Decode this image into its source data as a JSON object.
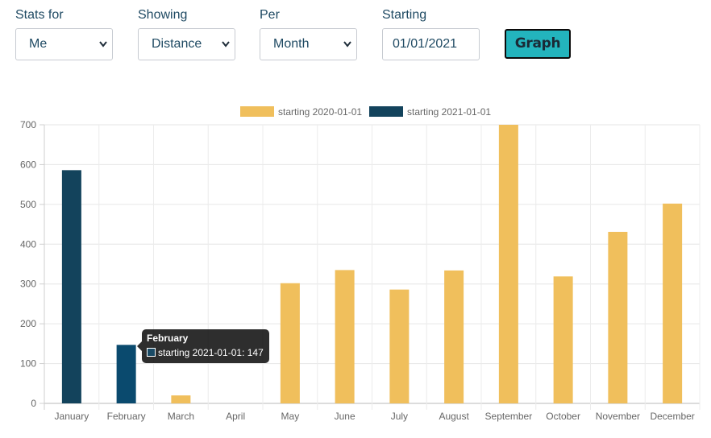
{
  "controls": {
    "stats_for": {
      "label": "Stats for",
      "value": "Me"
    },
    "showing": {
      "label": "Showing",
      "value": "Distance"
    },
    "per": {
      "label": "Per",
      "value": "Month"
    },
    "starting": {
      "label": "Starting",
      "value": "01/01/2021"
    },
    "graph_button": "Graph"
  },
  "tooltip": {
    "title": "February",
    "line": "starting 2021-01-01: 147"
  },
  "colors": {
    "series_2020": "#f0bf5c",
    "series_2021": "#13435c",
    "series_2021_highlight": "#0a4a6e",
    "accent_button": "#23b4bd"
  },
  "chart_data": {
    "type": "bar",
    "title": "",
    "xlabel": "",
    "ylabel": "",
    "ylim": [
      0,
      700
    ],
    "yticks": [
      0,
      100,
      200,
      300,
      400,
      500,
      600,
      700
    ],
    "grid": true,
    "legend_position": "top-center",
    "categories": [
      "January",
      "February",
      "March",
      "April",
      "May",
      "June",
      "July",
      "August",
      "September",
      "October",
      "November",
      "December"
    ],
    "series": [
      {
        "name": "starting 2020-01-01",
        "values": [
          0,
          0,
          20,
          0,
          302,
          335,
          286,
          334,
          700,
          319,
          431,
          502
        ]
      },
      {
        "name": "starting 2021-01-01",
        "values": [
          586,
          147,
          0,
          0,
          0,
          0,
          0,
          0,
          0,
          0,
          0,
          0
        ]
      }
    ]
  }
}
